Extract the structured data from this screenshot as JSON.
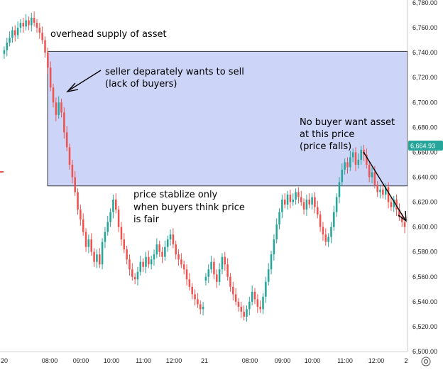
{
  "chart_data": {
    "type": "candlestick",
    "y_axis": {
      "ticks": [
        "6,780.00",
        "6,760.00",
        "6,740.00",
        "6,720.00",
        "6,700.00",
        "6,680.00",
        "6,660.00",
        "6,640.00",
        "6,620.00",
        "6,600.00",
        "6,580.00",
        "6,560.00",
        "6,540.00",
        "6,520.00",
        "6,500.00"
      ],
      "tick_values": [
        6780,
        6760,
        6740,
        6720,
        6700,
        6680,
        6660,
        6640,
        6620,
        6600,
        6580,
        6560,
        6540,
        6520,
        6500
      ],
      "range": [
        6500,
        6780
      ],
      "position": "right"
    },
    "x_axis": {
      "ticks": [
        "20",
        "08:00",
        "09:00",
        "10:00",
        "11:00",
        "12:00",
        "21",
        "08:00",
        "09:00",
        "10:00",
        "11:00",
        "12:00",
        "2"
      ]
    },
    "current_price": "6,664.93",
    "current_price_color": "#26a69a",
    "colors": {
      "up": "#26a69a",
      "down": "#ef5350",
      "zone_fill": "#ccd4f7",
      "zone_stroke": "#3b3b3b"
    },
    "supply_zone": {
      "top": 6741,
      "bottom": 6633
    },
    "session_1_close": [
      6742,
      6748,
      6752,
      6758,
      6754,
      6760,
      6764,
      6761,
      6766,
      6762,
      6768,
      6764,
      6760,
      6756,
      6750,
      6740,
      6728,
      6712,
      6700,
      6690,
      6700,
      6692,
      6676,
      6664,
      6650,
      6640,
      6628,
      6614,
      6606,
      6596,
      6584,
      6590,
      6580,
      6572,
      6578,
      6570,
      6588,
      6596,
      6604,
      6612,
      6622,
      6614,
      6600,
      6590,
      6582,
      6574,
      6566,
      6560,
      6558,
      6564,
      6572,
      6568,
      6576,
      6570,
      6574,
      6578,
      6586,
      6580,
      6576,
      6584,
      6590,
      6594,
      6586,
      6578,
      6574,
      6570,
      6566,
      6558,
      6552,
      6546,
      6542,
      6538,
      6534,
      6536
    ],
    "session_2_close": [
      6560,
      6566,
      6572,
      6562,
      6556,
      6566,
      6576,
      6570,
      6560,
      6552,
      6546,
      6540,
      6536,
      6532,
      6528,
      6534,
      6540,
      6548,
      6542,
      6536,
      6534,
      6544,
      6556,
      6566,
      6578,
      6590,
      6602,
      6612,
      6622,
      6618,
      6626,
      6620,
      6622,
      6628,
      6624,
      6620,
      6614,
      6622,
      6618,
      6624,
      6616,
      6610,
      6600,
      6594,
      6588,
      6592,
      6600,
      6612,
      6624,
      6636,
      6646,
      6652,
      6648,
      6656,
      6660,
      6650,
      6654,
      6662,
      6658,
      6650,
      6640,
      6644,
      6634,
      6628,
      6630,
      6626,
      6632,
      6620,
      6616,
      6622,
      6614,
      6608,
      6604,
      6600
    ],
    "annotations": [
      {
        "lines": [
          "overhead supply of asset"
        ]
      },
      {
        "lines": [
          "seller deparately wants to sell",
          "(lack of buyers)"
        ]
      },
      {
        "lines": [
          "price stablize only",
          "when buyers think price",
          "is fair"
        ]
      },
      {
        "lines": [
          "No buyer want asset",
          "at this price",
          "(price falls)"
        ]
      }
    ]
  },
  "ui": {
    "settings_icon": "gear-icon"
  }
}
